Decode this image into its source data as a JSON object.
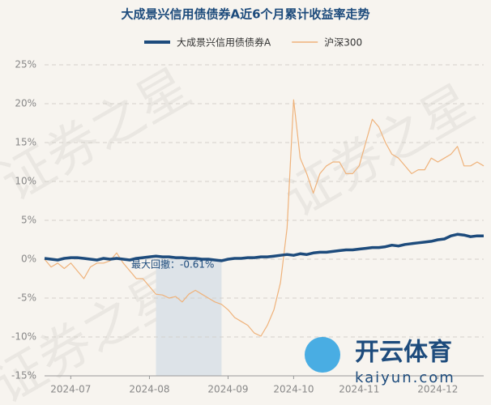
{
  "chart_data": {
    "type": "line",
    "title": "大成景兴信用债债券A近6个月累计收益率走势",
    "categories": [
      null,
      null,
      null,
      null,
      "2024-07",
      null,
      null,
      null,
      null,
      null,
      null,
      null,
      null,
      null,
      null,
      null,
      "2024-08",
      null,
      null,
      null,
      null,
      null,
      null,
      null,
      null,
      null,
      null,
      null,
      "2024-09",
      null,
      null,
      null,
      null,
      null,
      null,
      null,
      null,
      null,
      "2024-10",
      null,
      null,
      null,
      null,
      null,
      null,
      null,
      null,
      null,
      "2024-11",
      null,
      null,
      null,
      null,
      null,
      null,
      null,
      null,
      null,
      null,
      null,
      "2024-12",
      null,
      null,
      null,
      null,
      null,
      null,
      null
    ],
    "series": [
      {
        "name": "大成景兴信用债债券A",
        "color": "#1d4b7c",
        "width": 3.5,
        "values": [
          0.1,
          0.0,
          -0.1,
          0.1,
          0.2,
          0.2,
          0.1,
          0.0,
          -0.1,
          0.1,
          0.0,
          0.1,
          0.0,
          -0.1,
          0.1,
          0.2,
          0.3,
          0.4,
          0.3,
          0.3,
          0.2,
          0.2,
          0.1,
          0.1,
          0.0,
          0.0,
          -0.1,
          -0.2,
          0.0,
          0.1,
          0.1,
          0.2,
          0.2,
          0.3,
          0.3,
          0.4,
          0.5,
          0.6,
          0.5,
          0.7,
          0.6,
          0.8,
          0.9,
          0.9,
          1.0,
          1.1,
          1.2,
          1.2,
          1.3,
          1.4,
          1.5,
          1.5,
          1.6,
          1.8,
          1.7,
          1.9,
          2.0,
          2.1,
          2.2,
          2.3,
          2.5,
          2.6,
          3.0,
          3.2,
          3.1,
          2.9,
          3.0,
          3.0
        ]
      },
      {
        "name": "沪深300",
        "color": "#efb27a",
        "width": 1.2,
        "values": [
          0,
          -1,
          -0.5,
          -1.2,
          -0.5,
          -1.5,
          -2.5,
          -1,
          -0.5,
          -0.5,
          -0.2,
          0.8,
          -0.5,
          -1.5,
          -2.5,
          -2.5,
          -3.5,
          -4.5,
          -4.6,
          -5,
          -4.8,
          -5.5,
          -4.5,
          -4,
          -4.5,
          -5,
          -5.5,
          -5.8,
          -6.5,
          -7.5,
          -8,
          -8.5,
          -9.5,
          -9.9,
          -8.5,
          -6.5,
          -3,
          4,
          20.5,
          13,
          11,
          8.5,
          11,
          12,
          12.5,
          12.5,
          11,
          11,
          12,
          15,
          18,
          17,
          15,
          13.5,
          13,
          12,
          11,
          11.5,
          11.5,
          13,
          12.5,
          13,
          13.5,
          14.5,
          12,
          12,
          12.5,
          12
        ]
      }
    ],
    "ylim": [
      -15,
      25
    ],
    "yticks": [
      {
        "value": -15,
        "label": "-15%"
      },
      {
        "value": -10,
        "label": "-10%"
      },
      {
        "value": -5,
        "label": "-5%"
      },
      {
        "value": 0,
        "label": "0%"
      },
      {
        "value": 5,
        "label": "5%"
      },
      {
        "value": 10,
        "label": "10%"
      },
      {
        "value": 15,
        "label": "15%"
      },
      {
        "value": 20,
        "label": "20%"
      },
      {
        "value": 25,
        "label": "25%"
      }
    ],
    "grid": true,
    "annotation": "最大回撤：-0.61%",
    "watermark": "证券之星",
    "logo": [
      "开云体育",
      "kaiyun.com"
    ]
  }
}
